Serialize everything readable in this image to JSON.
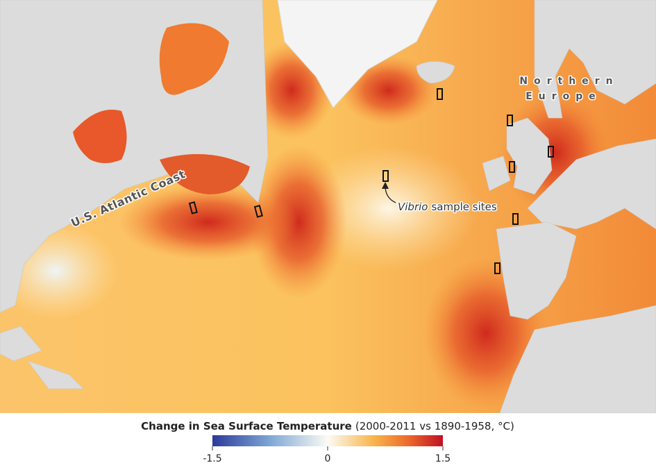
{
  "map": {
    "labels": {
      "us_coast": "U.S. Atlantic Coast",
      "europe_line1": "Northern",
      "europe_line2": "Europe"
    },
    "annotation": {
      "italic": "Vibrio",
      "text": "sample sites"
    },
    "legend": {
      "title": "Change in Sea Surface Temperature",
      "subtitle": "(2000-2011 vs 1890-1958, °C)",
      "range": [
        -1.5,
        1.5
      ],
      "ticks": [
        -1.5,
        0,
        1.5
      ]
    }
  }
}
